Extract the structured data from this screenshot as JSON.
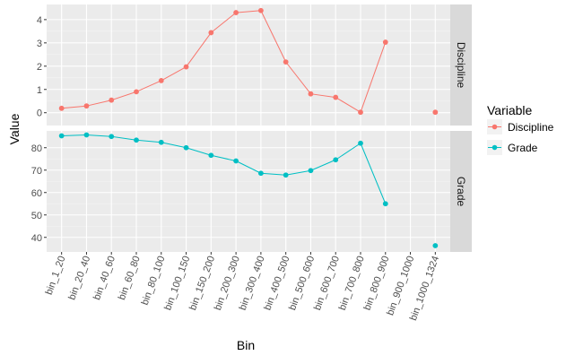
{
  "chart_data": {
    "type": "line",
    "xlabel": "Bin",
    "ylabel": "Value",
    "categories": [
      "bin_1_20",
      "bin_20_40",
      "bin_40_60",
      "bin_60_80",
      "bin_80_100",
      "bin_100_150",
      "bin_150_200",
      "bin_200_300",
      "bin_300_400",
      "bin_400_500",
      "bin_500_600",
      "bin_600_700",
      "bin_700_800",
      "bin_800_900",
      "bin_900_1000",
      "bin_1000_1324"
    ],
    "legend": {
      "title": "Variable",
      "position": "right",
      "entries": [
        "Discipline",
        "Grade"
      ]
    },
    "panels": [
      {
        "strip": "Discipline",
        "ylim": [
          -0.55,
          4.65
        ],
        "yticks": [
          0,
          1,
          2,
          3,
          4
        ],
        "series": {
          "name": "Discipline",
          "color": "#F8766D",
          "values": [
            0.19,
            0.29,
            0.54,
            0.9,
            1.38,
            1.97,
            3.44,
            4.3,
            4.39,
            2.18,
            0.81,
            0.66,
            0.02,
            3.03,
            null,
            0.02
          ]
        }
      },
      {
        "strip": "Grade",
        "ylim": [
          33.5,
          87.5
        ],
        "yticks": [
          40,
          50,
          60,
          70,
          80
        ],
        "series": {
          "name": "Grade",
          "color": "#00BFC4",
          "values": [
            85.3,
            85.7,
            85.0,
            83.4,
            82.4,
            80.0,
            76.6,
            74.1,
            68.6,
            67.8,
            69.8,
            74.6,
            82.0,
            55.0,
            null,
            36.3
          ]
        }
      }
    ],
    "grid": true
  }
}
